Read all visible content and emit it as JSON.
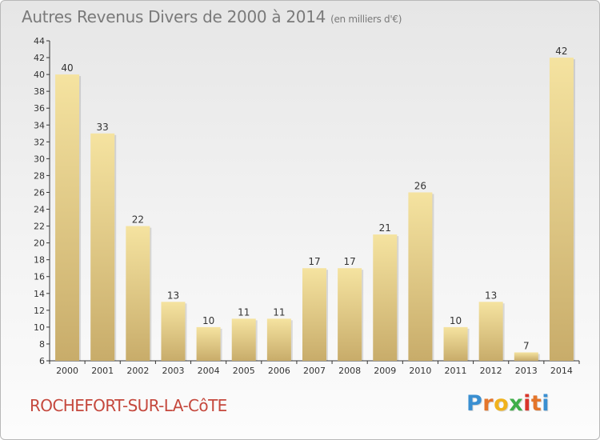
{
  "chart_data": {
    "type": "bar",
    "title": "Autres Revenus Divers de 2000 à 2014",
    "unit": "(en milliers d'€)",
    "categories": [
      "2000",
      "2001",
      "2002",
      "2003",
      "2004",
      "2005",
      "2006",
      "2007",
      "2008",
      "2009",
      "2010",
      "2011",
      "2012",
      "2013",
      "2014"
    ],
    "values": [
      40,
      33,
      22,
      13,
      10,
      11,
      11,
      17,
      17,
      21,
      26,
      10,
      13,
      7,
      42
    ],
    "ylim": [
      6,
      44
    ],
    "yticks": [
      6,
      8,
      10,
      12,
      14,
      16,
      18,
      20,
      22,
      24,
      26,
      28,
      30,
      32,
      34,
      36,
      38,
      40,
      42,
      44
    ],
    "grid": false,
    "bar_color_top": "#f5e3a0",
    "bar_color_bottom": "#c8ac6a"
  },
  "footer": {
    "location": "ROCHEFORT-SUR-LA-CôTE",
    "location_color": "#c5483d",
    "logo_letters": [
      "P",
      "r",
      "o",
      "x",
      "i",
      "t",
      "i"
    ],
    "logo_colors": [
      "#3a8fd1",
      "#e4752a",
      "#f0b21c",
      "#3fae49",
      "#d9352b",
      "#e4752a",
      "#3a8fd1"
    ]
  }
}
